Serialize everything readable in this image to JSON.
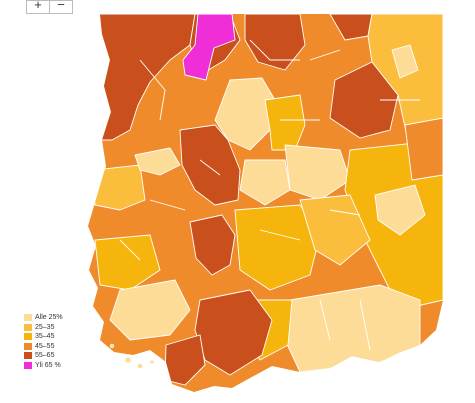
{
  "zoom": {
    "in_label": "+",
    "out_label": "−"
  },
  "legend": {
    "items": [
      {
        "label": "Alle 25%",
        "color": "#fddc98"
      },
      {
        "label": "25–35",
        "color": "#fbbe3c"
      },
      {
        "label": "35–45",
        "color": "#f5b50c"
      },
      {
        "label": "45–55",
        "color": "#ef8b2b"
      },
      {
        "label": "55–65",
        "color": "#c9501c"
      },
      {
        "label": "Yli 65 %",
        "color": "#f02ed8"
      }
    ]
  }
}
